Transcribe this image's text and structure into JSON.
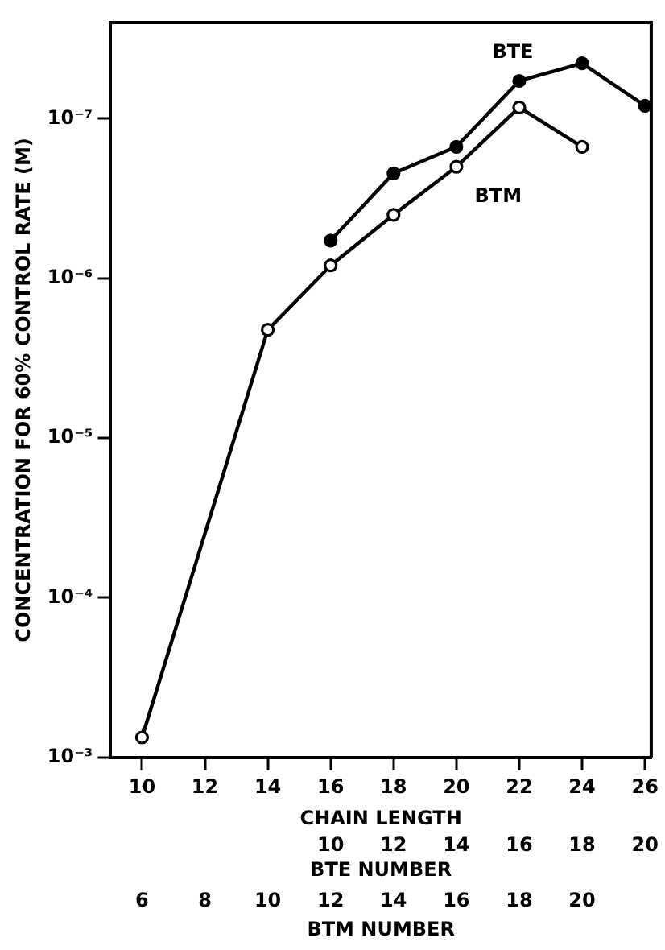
{
  "chart_data": {
    "type": "line",
    "xlabel": "CHAIN LENGTH",
    "ylabel": "CONCENTRATION FOR 60% CONTROL RATE (M)",
    "x2label": "BTE NUMBER",
    "annotations": [
      "6",
      "8",
      "10",
      "12",
      "14",
      "16",
      "18",
      "20",
      "BTM NUMBER"
    ],
    "xlim": [
      9,
      26.2
    ],
    "xticks": [
      10,
      12,
      14,
      16,
      18,
      20,
      22,
      24,
      26
    ],
    "x2lim": [
      3,
      20.2
    ],
    "x2ticks": [
      10,
      12,
      14,
      16,
      18,
      20
    ],
    "ylim": [
      0.001,
      2.5e-08
    ],
    "yticks": [
      {
        "value": 0.001,
        "label": "10⁻³"
      },
      {
        "value": 0.0001,
        "label": "10⁻⁴"
      },
      {
        "value": 1e-05,
        "label": "10⁻⁵"
      },
      {
        "value": 1e-06,
        "label": "10⁻⁶"
      },
      {
        "value": 1e-07,
        "label": "10⁻⁷"
      }
    ],
    "log": "y",
    "grid": false,
    "legend": false,
    "marker": "circle",
    "line_style": "solid",
    "series": [
      {
        "name": "BTE",
        "color": "#000000",
        "x": [
          16,
          18,
          20,
          22,
          24,
          26
        ],
        "values": [
          5.8e-07,
          2.2e-07,
          1.5e-07,
          5.8e-08,
          4.5e-08,
          8.3e-08
        ]
      },
      {
        "name": "BTM",
        "color": "#000000",
        "x": [
          10,
          14,
          16,
          18,
          20,
          22,
          24
        ],
        "values": [
          0.00075,
          2.1e-06,
          8.3e-07,
          4e-07,
          2e-07,
          8.5e-08,
          1.5e-07
        ]
      }
    ]
  }
}
